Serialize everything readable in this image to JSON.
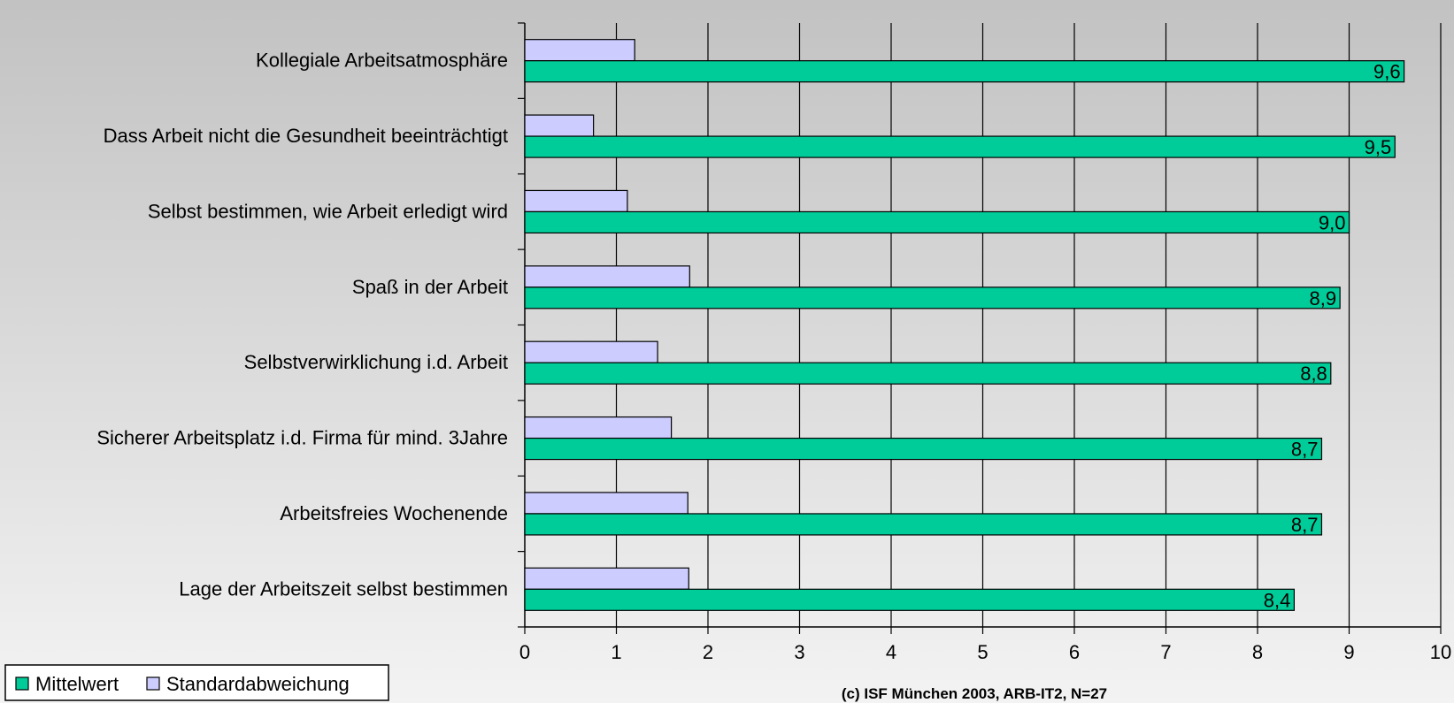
{
  "chart_data": {
    "type": "bar",
    "orientation": "horizontal",
    "categories": [
      "Kollegiale Arbeitsatmosphäre",
      "Dass Arbeit nicht die Gesundheit beeinträchtigt",
      "Selbst bestimmen, wie Arbeit erledigt wird",
      "Spaß in der Arbeit",
      "Selbstverwirklichung i.d. Arbeit",
      "Sicherer Arbeitsplatz i.d. Firma für mind. 3Jahre",
      "Arbeitsfreies Wochenende",
      "Lage der Arbeitszeit selbst bestimmen"
    ],
    "series": [
      {
        "name": "Mittelwert",
        "color": "#00cc99",
        "values": [
          9.6,
          9.5,
          9.0,
          8.9,
          8.8,
          8.7,
          8.7,
          8.4
        ],
        "data_labels": [
          "9,6",
          "9,5",
          "9,0",
          "8,9",
          "8,8",
          "8,7",
          "8,7",
          "8,4"
        ]
      },
      {
        "name": "Standardabweichung",
        "color": "#ccccff",
        "values": [
          1.2,
          0.75,
          1.12,
          1.8,
          1.45,
          1.6,
          1.78,
          1.79
        ]
      }
    ],
    "xlim": [
      0,
      10
    ],
    "xticks": [
      "0",
      "1",
      "2",
      "3",
      "4",
      "5",
      "6",
      "7",
      "8",
      "9",
      "10"
    ],
    "grid": true,
    "legend": "bottom-left",
    "annotation": "(c) ISF München 2003, ARB-IT2, N=27"
  }
}
